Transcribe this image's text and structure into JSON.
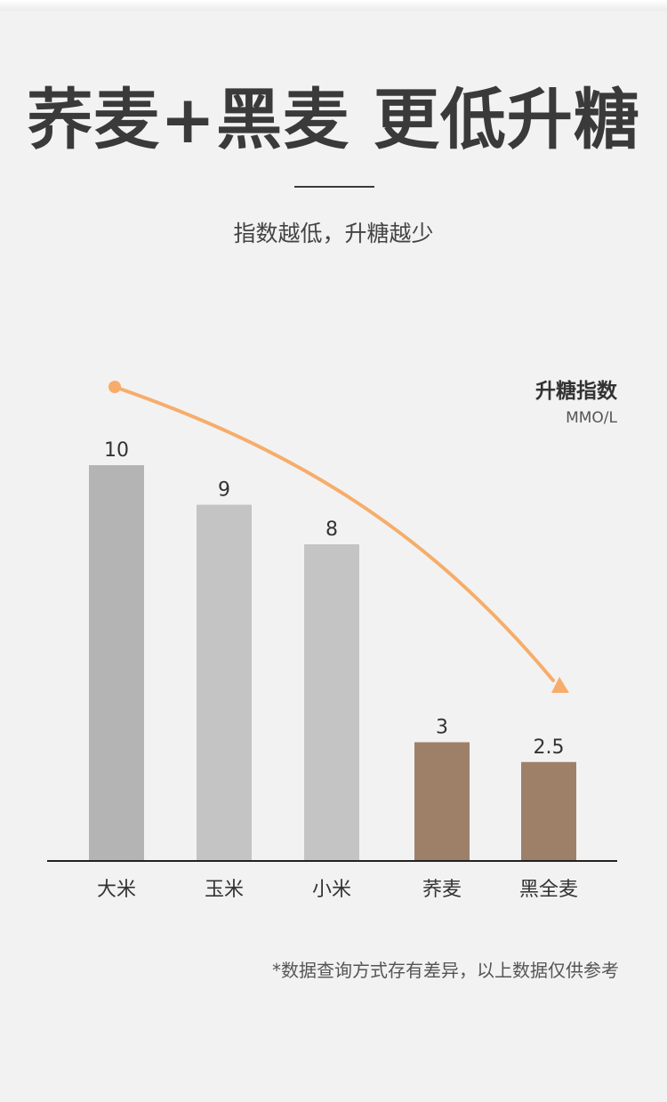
{
  "header": {
    "title": "荞麦+黑麦 更低升糖",
    "subtitle": "指数越低，升糖越少"
  },
  "chart_data": {
    "type": "bar",
    "categories": [
      "大米",
      "玉米",
      "小米",
      "荞麦",
      "黑全麦"
    ],
    "values": [
      10,
      9,
      8,
      3,
      2.5
    ],
    "value_labels": [
      "10",
      "9",
      "8",
      "3",
      "2.5"
    ],
    "ylabel": "升糖指数",
    "yunit": "MMO/L",
    "ylim": [
      0,
      10
    ],
    "grid": false,
    "colors": [
      "#b4b4b4",
      "#c4c4c4",
      "#c4c4c4",
      "#9e8069",
      "#9e8069"
    ],
    "trend_color": "#f6ad6b"
  },
  "footnote": "*数据查询方式存有差异，以上数据仅供参考"
}
